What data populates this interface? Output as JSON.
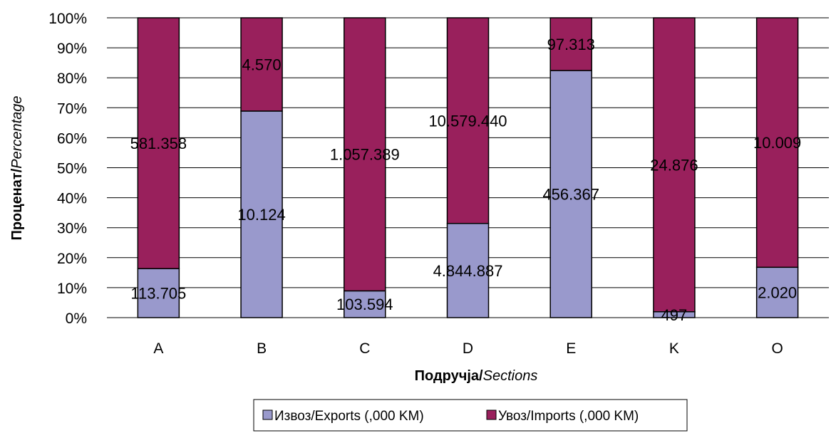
{
  "chart_data": {
    "type": "bar",
    "stacked": "percent",
    "categories": [
      "A",
      "B",
      "C",
      "D",
      "E",
      "K",
      "O"
    ],
    "series": [
      {
        "name": "Извоз/Exports (,000 KM)",
        "color": "#9999cc",
        "values": [
          113705,
          10124,
          103594,
          4844887,
          456367,
          497,
          2020
        ],
        "labels": [
          "113.705",
          "10.124",
          "103.594",
          "4.844.887",
          "456.367",
          "497",
          "2.020"
        ]
      },
      {
        "name": "Увоз/Imports (,000 KM)",
        "color": "#99205c",
        "values": [
          581358,
          4570,
          1057389,
          10579440,
          97313,
          24876,
          10009
        ],
        "labels": [
          "581.358",
          "4.570",
          "1.057.389",
          "10.579.440",
          "97.313",
          "24.876",
          "10.009"
        ]
      }
    ],
    "ylim": [
      0,
      100
    ],
    "yticks": [
      "0%",
      "10%",
      "20%",
      "30%",
      "40%",
      "50%",
      "60%",
      "70%",
      "80%",
      "90%",
      "100%"
    ],
    "xlabel": {
      "bold": "Подручја/",
      "italic": "Sections"
    },
    "ylabel": {
      "bold": "Проценат/",
      "italic": "Percentage"
    },
    "grid": true,
    "legend_position": "bottom"
  }
}
